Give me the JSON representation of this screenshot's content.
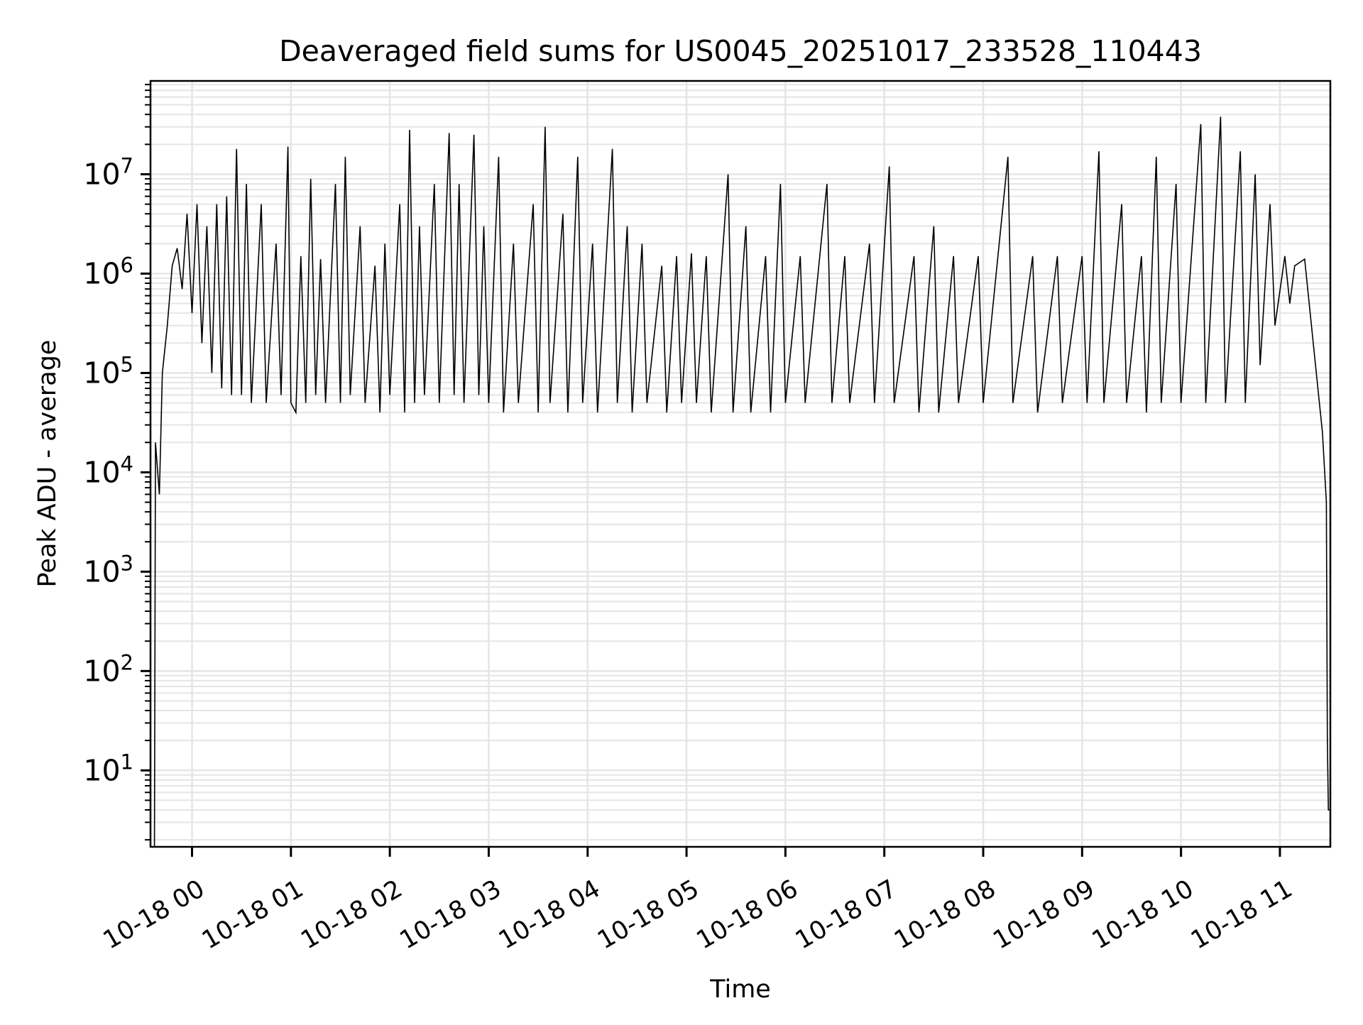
{
  "chart_data": {
    "type": "line",
    "title": "Deaveraged field sums for US0045_20251017_233528_110443",
    "xlabel": "Time",
    "ylabel": "Peak ADU - average",
    "yscale": "log",
    "ylim": [
      1.7,
      87000000
    ],
    "xlim_hours": [
      -0.42,
      11.51
    ],
    "grid": "on (major and minor)",
    "x_tick_hours": [
      0,
      1,
      2,
      3,
      4,
      5,
      6,
      7,
      8,
      9,
      10,
      11
    ],
    "x_tick_labels": [
      "10-18 00",
      "10-18 01",
      "10-18 02",
      "10-18 03",
      "10-18 04",
      "10-18 05",
      "10-18 06",
      "10-18 07",
      "10-18 08",
      "10-18 09",
      "10-18 10",
      "10-18 11"
    ],
    "y_tick_exponents": [
      1,
      2,
      3,
      4,
      5,
      6,
      7
    ],
    "y_tick_base": "10",
    "line_color": "#000000",
    "grid_color": "#e5e5e5",
    "series": [
      {
        "name": "field sums",
        "x_hours": [
          -0.38,
          -0.37,
          -0.33,
          -0.3,
          -0.25,
          -0.2,
          -0.15,
          -0.1,
          -0.05,
          0,
          0.05,
          0.1,
          0.15,
          0.2,
          0.25,
          0.3,
          0.35,
          0.4,
          0.45,
          0.5,
          0.55,
          0.6,
          0.7,
          0.75,
          0.85,
          0.9,
          0.97,
          1.0,
          1.05,
          1.1,
          1.15,
          1.2,
          1.25,
          1.3,
          1.35,
          1.45,
          1.5,
          1.55,
          1.6,
          1.7,
          1.75,
          1.85,
          1.9,
          1.95,
          2.0,
          2.1,
          2.15,
          2.2,
          2.25,
          2.3,
          2.35,
          2.45,
          2.5,
          2.6,
          2.65,
          2.7,
          2.75,
          2.85,
          2.9,
          2.95,
          3.0,
          3.1,
          3.15,
          3.25,
          3.3,
          3.45,
          3.5,
          3.57,
          3.62,
          3.75,
          3.8,
          3.9,
          3.95,
          4.05,
          4.1,
          4.25,
          4.3,
          4.4,
          4.45,
          4.55,
          4.6,
          4.75,
          4.8,
          4.9,
          4.95,
          5.05,
          5.1,
          5.2,
          5.25,
          5.42,
          5.47,
          5.6,
          5.65,
          5.8,
          5.85,
          5.95,
          6.0,
          6.15,
          6.2,
          6.42,
          6.47,
          6.6,
          6.65,
          6.85,
          6.9,
          7.05,
          7.1,
          7.3,
          7.35,
          7.5,
          7.55,
          7.7,
          7.75,
          7.95,
          8.0,
          8.25,
          8.3,
          8.5,
          8.55,
          8.75,
          8.8,
          9.0,
          9.05,
          9.17,
          9.22,
          9.4,
          9.45,
          9.6,
          9.65,
          9.75,
          9.8,
          9.95,
          10.0,
          10.2,
          10.25,
          10.4,
          10.45,
          10.6,
          10.65,
          10.75,
          10.8,
          10.9,
          10.95,
          11.05,
          11.1,
          11.15,
          11.25,
          11.35,
          11.43,
          11.47,
          11.48,
          11.49,
          11.51
        ],
        "y": [
          2,
          20000,
          6000,
          100000,
          300000,
          1200000,
          1800000,
          700000,
          4000000,
          400000,
          5000000,
          200000,
          3000000,
          100000,
          5000000,
          70000,
          6000000,
          60000,
          18000000,
          60000,
          8000000,
          50000,
          5000000,
          50000,
          2000000,
          60000,
          19000000,
          50000,
          40000,
          1500000,
          50000,
          9000000,
          60000,
          1400000,
          50000,
          8000000,
          50000,
          15000000,
          60000,
          3000000,
          50000,
          1200000,
          40000,
          2000000,
          60000,
          5000000,
          40000,
          28000000,
          50000,
          3000000,
          60000,
          8000000,
          50000,
          26000000,
          60000,
          8000000,
          50000,
          25000000,
          60000,
          3000000,
          50000,
          15000000,
          40000,
          2000000,
          50000,
          5000000,
          40000,
          30000000,
          50000,
          4000000,
          40000,
          15000000,
          50000,
          2000000,
          40000,
          18000000,
          50000,
          3000000,
          40000,
          2000000,
          50000,
          1200000,
          40000,
          1500000,
          50000,
          1600000,
          50000,
          1500000,
          40000,
          10000000,
          40000,
          3000000,
          40000,
          1500000,
          40000,
          8000000,
          50000,
          1500000,
          50000,
          8000000,
          50000,
          1500000,
          50000,
          2000000,
          50000,
          12000000,
          50000,
          1500000,
          40000,
          3000000,
          40000,
          1500000,
          50000,
          1500000,
          50000,
          15000000,
          50000,
          1500000,
          40000,
          1500000,
          50000,
          1500000,
          50000,
          17000000,
          50000,
          5000000,
          50000,
          1500000,
          40000,
          15000000,
          50000,
          8000000,
          50000,
          32000000,
          50000,
          38000000,
          50000,
          17000000,
          50000,
          10000000,
          120000,
          5000000,
          300000,
          1500000,
          500000,
          1200000,
          1400000,
          150000,
          25000,
          5000,
          20,
          4,
          4
        ]
      }
    ]
  }
}
